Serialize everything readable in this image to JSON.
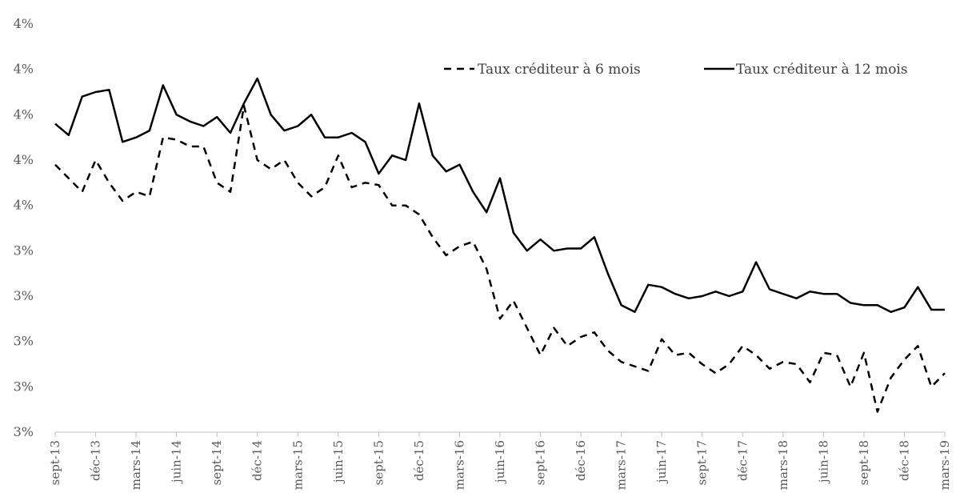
{
  "chart_data": {
    "type": "line",
    "title": "",
    "xlabel": "",
    "ylabel": "",
    "y_tick_labels": [
      "3%",
      "3%",
      "3%",
      "3%",
      "3%",
      "4%",
      "4%",
      "4%",
      "4%",
      "4%"
    ],
    "ylim": [
      0,
      9
    ],
    "x_tick_labels": [
      "sept-13",
      "déc-13",
      "mars-14",
      "juin-14",
      "sept-14",
      "déc-14",
      "mars-15",
      "juin-15",
      "sept-15",
      "déc-15",
      "mars-16",
      "juin-16",
      "sept-16",
      "déc-16",
      "mars-17",
      "juin-17",
      "sept-17",
      "déc-17",
      "mars-18",
      "juin-18",
      "sept-18",
      "déc-18",
      "mars-19"
    ],
    "grid": false,
    "legend": "top-right",
    "series": [
      {
        "name": "Taux créditeur à 6 mois",
        "style": "dashed",
        "color": "#000000",
        "values": [
          5.9,
          5.6,
          5.3,
          6.0,
          5.5,
          5.1,
          5.3,
          5.2,
          6.5,
          6.45,
          6.3,
          6.3,
          5.5,
          5.3,
          7.2,
          6.0,
          5.8,
          6.0,
          5.5,
          5.2,
          5.4,
          6.1,
          5.4,
          5.5,
          5.45,
          5.0,
          5.0,
          4.8,
          4.3,
          3.9,
          4.1,
          4.2,
          3.6,
          2.5,
          2.9,
          2.3,
          1.7,
          2.3,
          1.9,
          2.1,
          2.2,
          1.8,
          1.55,
          1.45,
          1.35,
          2.05,
          1.7,
          1.75,
          1.5,
          1.3,
          1.5,
          1.9,
          1.7,
          1.4,
          1.55,
          1.5,
          1.1,
          1.75,
          1.7,
          1.0,
          1.75,
          0.45,
          1.2,
          1.6,
          1.9,
          1.0,
          1.3
        ]
      },
      {
        "name": "Taux créditeur à 12 mois",
        "style": "solid",
        "color": "#000000",
        "values": [
          6.8,
          6.55,
          7.4,
          7.5,
          7.55,
          6.4,
          6.5,
          6.65,
          7.65,
          7.0,
          6.85,
          6.75,
          6.95,
          6.6,
          7.25,
          7.8,
          7.0,
          6.65,
          6.75,
          7.0,
          6.5,
          6.5,
          6.6,
          6.4,
          5.7,
          6.1,
          6.0,
          7.25,
          6.1,
          5.75,
          5.9,
          5.3,
          4.85,
          5.6,
          4.4,
          4.0,
          4.25,
          4.0,
          4.05,
          4.05,
          4.3,
          3.5,
          2.8,
          2.65,
          3.25,
          3.2,
          3.05,
          2.95,
          3.0,
          3.1,
          3.0,
          3.1,
          3.75,
          3.15,
          3.05,
          2.95,
          3.1,
          3.05,
          3.05,
          2.85,
          2.8,
          2.8,
          2.65,
          2.75,
          3.2,
          2.7,
          2.7
        ]
      }
    ]
  }
}
